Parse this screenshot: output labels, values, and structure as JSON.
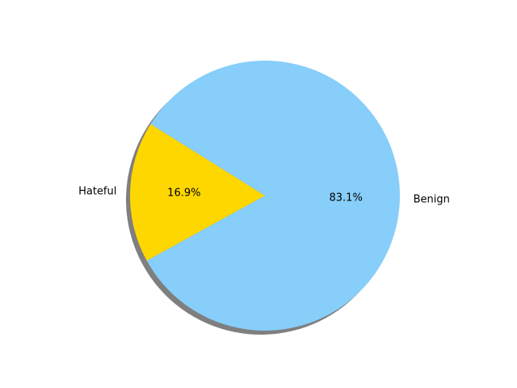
{
  "chart_data": {
    "type": "pie",
    "title": "",
    "slices": [
      {
        "label": "Hateful",
        "value": 16.9,
        "pct_label": "16.9%",
        "color": "#FFD700"
      },
      {
        "label": "Benign",
        "value": 83.1,
        "pct_label": "83.1%",
        "color": "#87CEFA"
      }
    ],
    "shadow": true,
    "shadow_color": "#000000",
    "legend": "none"
  }
}
